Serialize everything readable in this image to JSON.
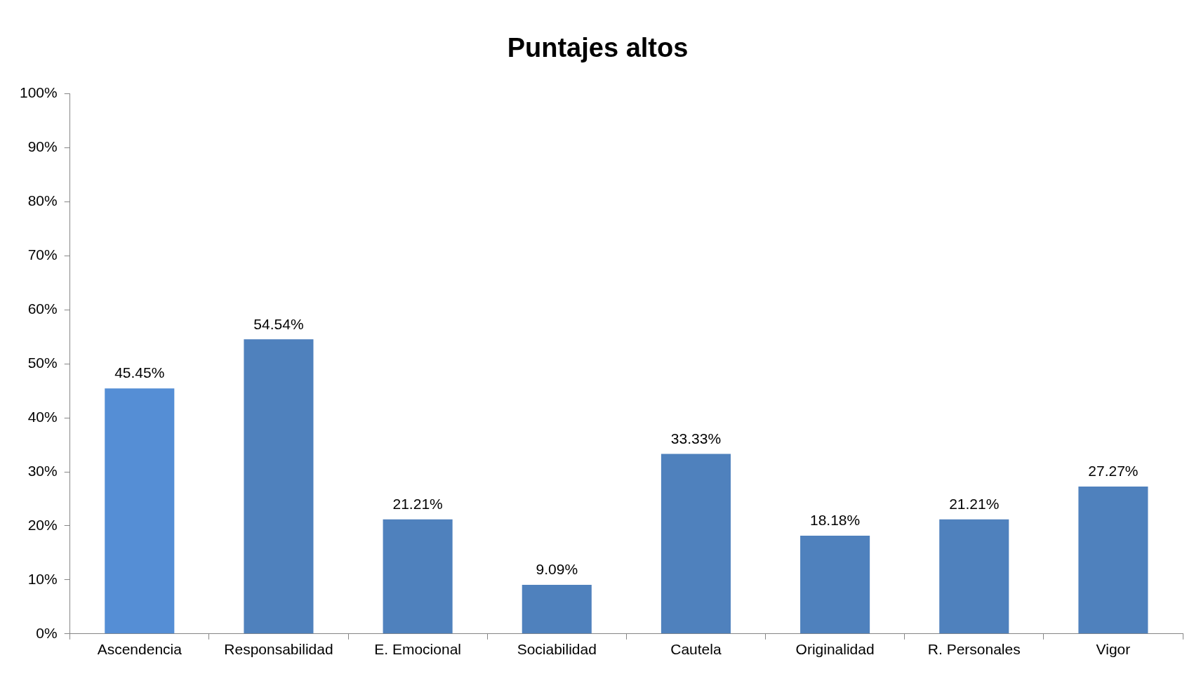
{
  "chart_data": {
    "type": "bar",
    "title": "Puntajes altos",
    "categories": [
      "Ascendencia",
      "Responsabilidad",
      "E. Emocional",
      "Sociabilidad",
      "Cautela",
      "Originalidad",
      "R. Personales",
      "Vigor"
    ],
    "values": [
      45.45,
      54.54,
      21.21,
      9.09,
      33.33,
      18.18,
      21.21,
      27.27
    ],
    "colors": [
      "#558ed5",
      "#4f81bd",
      "#4f81bd",
      "#4f81bd",
      "#4f81bd",
      "#4f81bd",
      "#4f81bd",
      "#4f81bd"
    ],
    "value_labels": [
      "45.45%",
      "54.54%",
      "21.21%",
      "9.09%",
      "33.33%",
      "18.18%",
      "21.21%",
      "27.27%"
    ],
    "ylim": [
      0,
      100
    ],
    "yticks": [
      {
        "value": 0,
        "label": "0%"
      },
      {
        "value": 10,
        "label": "10%"
      },
      {
        "value": 20,
        "label": "20%"
      },
      {
        "value": 30,
        "label": "30%"
      },
      {
        "value": 40,
        "label": "40%"
      },
      {
        "value": 50,
        "label": "50%"
      },
      {
        "value": 60,
        "label": "60%"
      },
      {
        "value": 70,
        "label": "70%"
      },
      {
        "value": 80,
        "label": "80%"
      },
      {
        "value": 90,
        "label": "90%"
      },
      {
        "value": 100,
        "label": "100%"
      }
    ],
    "grid": false,
    "legend": false
  }
}
